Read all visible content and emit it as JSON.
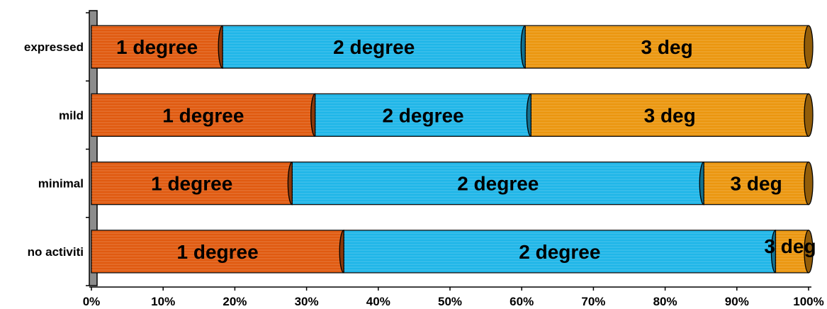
{
  "chart_data": {
    "type": "bar",
    "orientation": "horizontal",
    "stacked": "percent",
    "title": "",
    "xlabel": "",
    "ylabel": "",
    "xlim": [
      0,
      100
    ],
    "x_ticks": [
      "0%",
      "10%",
      "20%",
      "30%",
      "40%",
      "50%",
      "60%",
      "70%",
      "80%",
      "90%",
      "100%"
    ],
    "categories": [
      "expressed",
      "mild",
      "minimal",
      "no activiti"
    ],
    "series": [
      {
        "name": "1 degree",
        "color": "#e05a10",
        "values": [
          18.3,
          31.2,
          28.0,
          35.2
        ]
      },
      {
        "name": "2 degree",
        "color": "#1fb6e8",
        "values": [
          42.2,
          30.1,
          57.4,
          60.2
        ]
      },
      {
        "name": "3 deg",
        "color": "#eb960f",
        "values": [
          39.5,
          38.7,
          14.6,
          4.6
        ]
      }
    ],
    "data_labels": [
      [
        "1 degree",
        "2 degree",
        "3 deg"
      ],
      [
        "1 degree",
        "2 degree",
        "3 deg"
      ],
      [
        "1 degree",
        "2 degree",
        "3 deg"
      ],
      [
        "1 degree",
        "2 degree",
        "3 deg"
      ]
    ],
    "grid": false,
    "legend": "none"
  }
}
